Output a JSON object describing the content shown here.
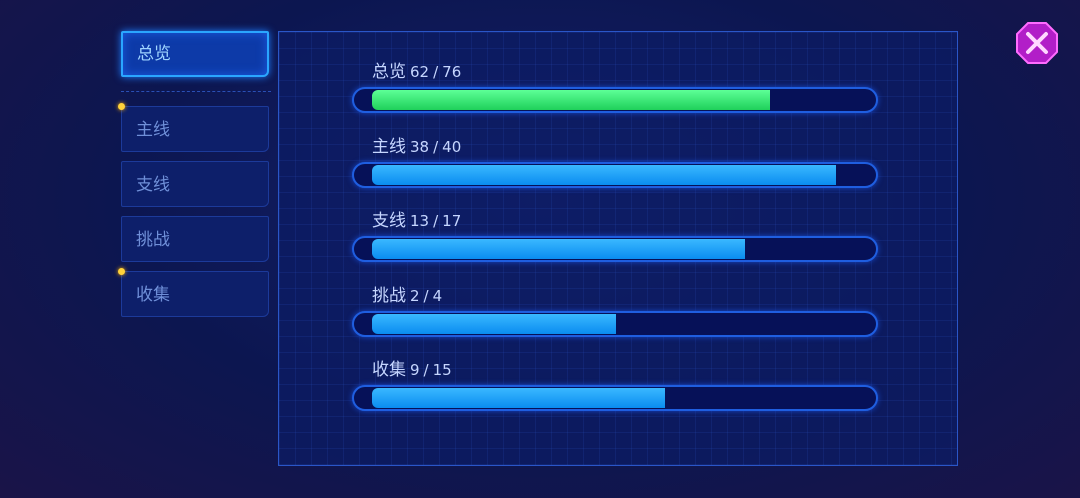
{
  "tabs": [
    {
      "label": "总览",
      "selected": true,
      "badge": false
    },
    {
      "label": "主线",
      "selected": false,
      "badge": true
    },
    {
      "label": "支线",
      "selected": false,
      "badge": false
    },
    {
      "label": "挑战",
      "selected": false,
      "badge": false
    },
    {
      "label": "收集",
      "selected": false,
      "badge": true
    }
  ],
  "separator": "/",
  "rows": [
    {
      "label": "总览",
      "done": 62,
      "total": 76,
      "highlight": true
    },
    {
      "label": "主线",
      "done": 38,
      "total": 40,
      "highlight": false
    },
    {
      "label": "支线",
      "done": 13,
      "total": 17,
      "highlight": false
    },
    {
      "label": "挑战",
      "done": 2,
      "total": 4,
      "highlight": false
    },
    {
      "label": "收集",
      "done": 9,
      "total": 15,
      "highlight": false
    }
  ]
}
